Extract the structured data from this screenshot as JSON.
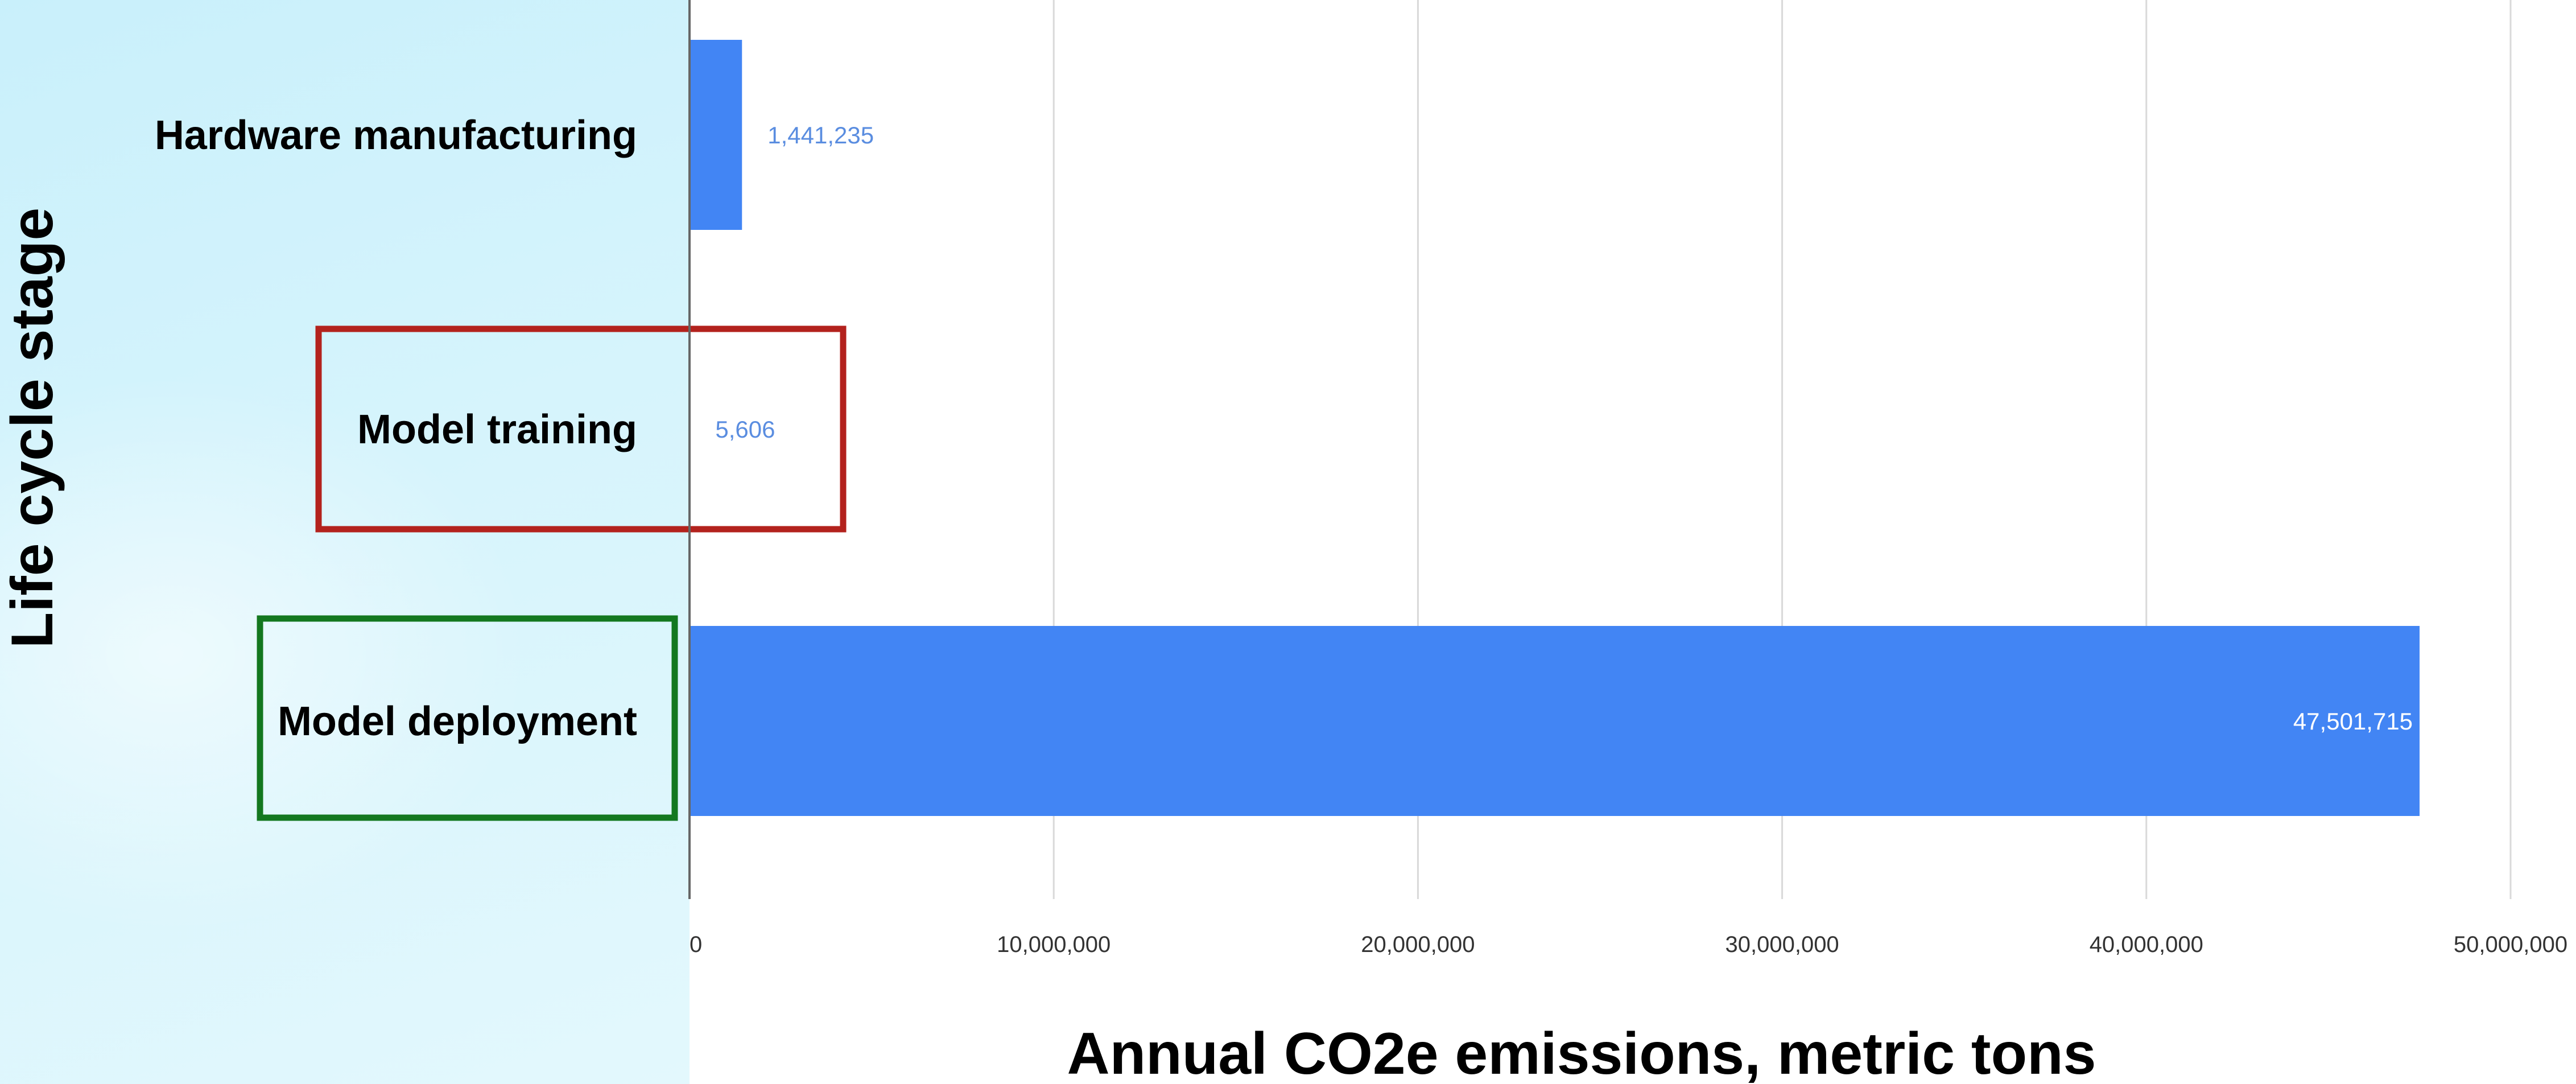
{
  "chart_data": {
    "type": "bar",
    "orientation": "horizontal",
    "categories": [
      "Hardware manufacturing",
      "Model training",
      "Model deployment"
    ],
    "values": [
      1441235,
      5606,
      47501715
    ],
    "data_labels": [
      "1,441,235",
      "5,606",
      "47,501,715"
    ],
    "xlabel": "Annual CO2e emissions, metric tons",
    "ylabel": "Life cycle stage",
    "xlim": [
      0,
      50000000
    ],
    "x_ticks": [
      0,
      10000000,
      20000000,
      30000000,
      40000000,
      50000000
    ],
    "x_tick_labels": [
      "0",
      "10,000,000",
      "20,000,000",
      "30,000,000",
      "40,000,000",
      "50,000,000"
    ],
    "grid": "vertical",
    "legend": "none",
    "highlights": [
      {
        "category": "Model training",
        "color": "#b3221d"
      },
      {
        "category": "Model deployment",
        "color": "#13781f"
      }
    ]
  },
  "colors": {
    "bar": "#4285f4",
    "grid": "#d9d9d9",
    "axis": "#666666",
    "data_label_outside": "#5a8de0",
    "data_label_inside": "#ffffff",
    "backdrop": "#d6f4fc"
  }
}
